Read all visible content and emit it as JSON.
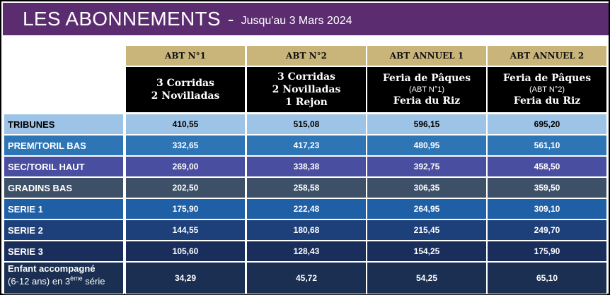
{
  "header": {
    "title": "LES ABONNEMENTS",
    "dash": "-",
    "subtitle": "Jusqu'au 3 Mars 2024",
    "color": "#5b2c6f"
  },
  "columns": [
    {
      "code": "ABT N°1",
      "line1": "3 Corridas",
      "line2": "2 Novilladas",
      "note": "",
      "line3": ""
    },
    {
      "code": "ABT N°2",
      "line1": "3 Corridas",
      "line2": "2 Novilladas",
      "note": "",
      "line3": "1 Rejon"
    },
    {
      "code": "ABT ANNUEL 1",
      "line1": "Feria de Pâques",
      "line2": "",
      "note": "(ABT N°1)",
      "line3": "Feria du Riz"
    },
    {
      "code": "ABT ANNUEL 2",
      "line1": "Feria de Pâques",
      "line2": "",
      "note": "(ABT N°2)",
      "line3": "Feria du Riz"
    }
  ],
  "rows": [
    {
      "label": "TRIBUNES",
      "values": [
        "410,55",
        "515,08",
        "596,15",
        "695,20"
      ],
      "color": "#9dc3e6"
    },
    {
      "label": "PREM/TORIL BAS",
      "values": [
        "332,65",
        "417,23",
        "480,95",
        "561,10"
      ],
      "color": "#2e75b6"
    },
    {
      "label": "SEC/TORIL HAUT",
      "values": [
        "269,00",
        "338,38",
        "392,75",
        "458,50"
      ],
      "color": "#4a4ea0"
    },
    {
      "label": "GRADINS BAS",
      "values": [
        "202,50",
        "258,58",
        "306,35",
        "359,50"
      ],
      "color": "#3d5068"
    },
    {
      "label": "SERIE 1",
      "values": [
        "175,90",
        "222,48",
        "264,95",
        "309,10"
      ],
      "color": "#1f5fa6"
    },
    {
      "label": "SERIE 2",
      "values": [
        "144,55",
        "180,68",
        "215,45",
        "249,70"
      ],
      "color": "#1d3f7a"
    },
    {
      "label": "SERIE 3",
      "values": [
        "105,60",
        "128,43",
        "154,25",
        "175,90"
      ],
      "color": "#1a2e5c"
    },
    {
      "label": "Enfant accompagné",
      "sublabel_pre": "(6-12 ans) en 3",
      "sublabel_sup": "ème",
      "sublabel_post": " série",
      "values": [
        "34,29",
        "45,72",
        "54,25",
        "65,10"
      ],
      "color": "#1a2f52"
    }
  ]
}
